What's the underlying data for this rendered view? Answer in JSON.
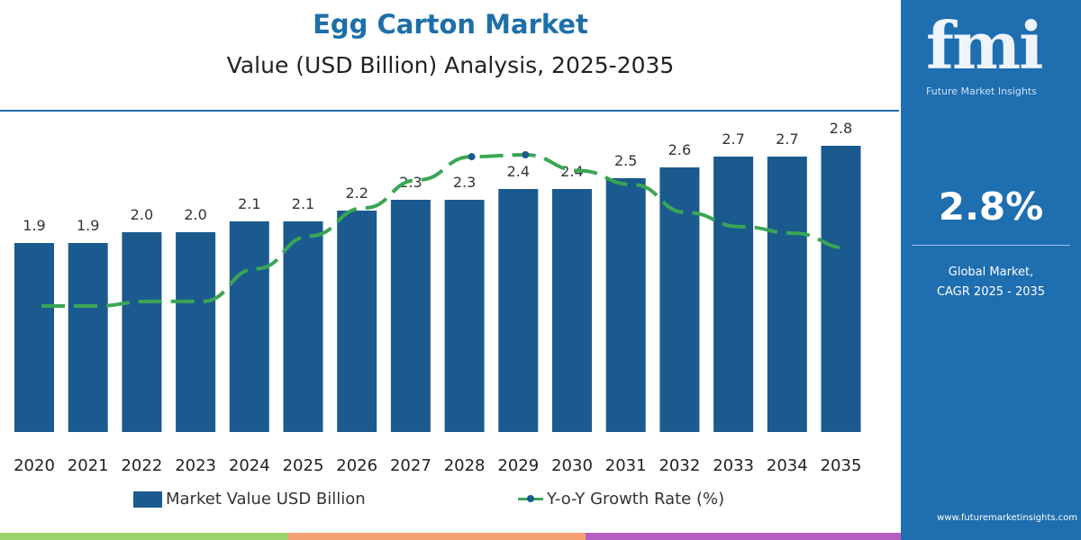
{
  "header": {
    "title": "Egg Carton Market",
    "subtitle": "Value (USD Billion) Analysis, 2025-2035"
  },
  "chart_data": {
    "type": "bar",
    "categories": [
      "2020",
      "2021",
      "2022",
      "2023",
      "2024",
      "2025",
      "2026",
      "2027",
      "2028",
      "2029",
      "2030",
      "2031",
      "2032",
      "2033",
      "2034",
      "2035"
    ],
    "series": [
      {
        "name": "Market Value USD Billion",
        "type": "bar",
        "color": "#1b5a8e",
        "values": [
          1.9,
          1.9,
          2.0,
          2.0,
          2.1,
          2.1,
          2.2,
          2.3,
          2.3,
          2.4,
          2.4,
          2.5,
          2.6,
          2.7,
          2.7,
          2.8
        ],
        "labels": [
          "1.9",
          "1.9",
          "2.0",
          "2.0",
          "2.1",
          "2.1",
          "2.2",
          "2.3",
          "2.3",
          "2.4",
          "2.4",
          "2.5",
          "2.6",
          "2.7",
          "2.7",
          "2.8"
        ]
      },
      {
        "name": "Y-o-Y Growth Rate (%)",
        "type": "line",
        "color": "#3aa655",
        "values": [
          2.0,
          2.0,
          2.05,
          2.05,
          2.4,
          2.75,
          3.05,
          3.35,
          3.6,
          3.62,
          3.45,
          3.3,
          3.0,
          2.85,
          2.78,
          2.62
        ]
      }
    ],
    "legend": "bottom",
    "grid": false,
    "y_axis_shown": false
  },
  "legend": {
    "bar": "Market Value USD Billion",
    "line": "Y-o-Y Growth Rate (%)"
  },
  "panel": {
    "logo": "fmi",
    "logo_sub": "Future Market Insights",
    "cagr": "2.8%",
    "cagr_label_1": "Global Market,",
    "cagr_label_2": "CAGR 2025 - 2035",
    "url": "www.futuremarketinsights.com"
  },
  "colors": {
    "brand": "#1e6eb0",
    "bar": "#1b5a8e",
    "line": "#3aa655",
    "stripes": [
      "#9bd36b",
      "#f4a070",
      "#b75fc0"
    ]
  }
}
